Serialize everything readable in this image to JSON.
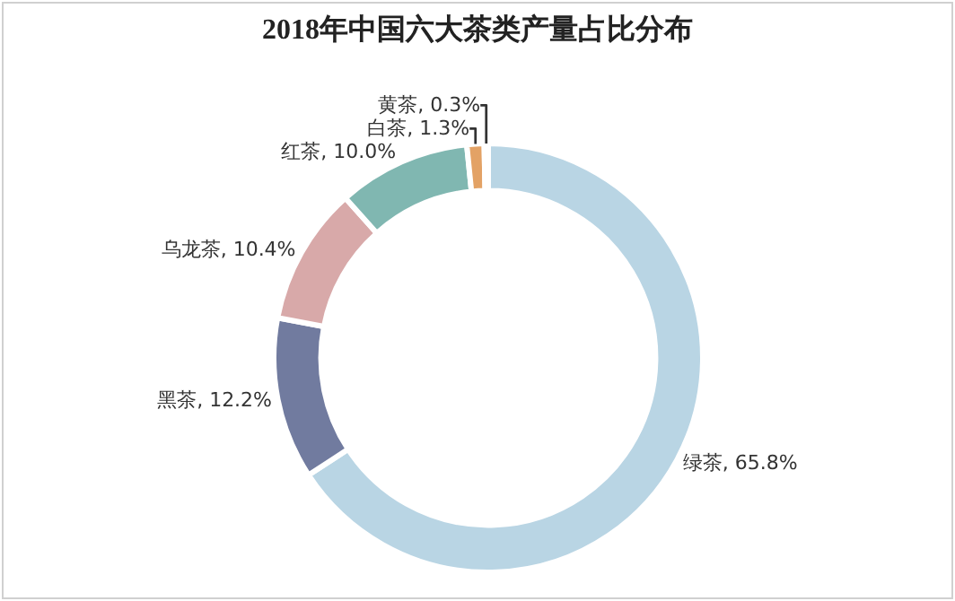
{
  "chart_data": {
    "type": "donut",
    "title": "2018年中国六大茶类产量占比分布",
    "categories": [
      "绿茶",
      "黑茶",
      "乌龙茶",
      "红茶",
      "白茶",
      "黄茶"
    ],
    "values": [
      65.8,
      12.2,
      10.4,
      10.0,
      1.3,
      0.3
    ],
    "colors": [
      "#b9d5e4",
      "#717b9f",
      "#d8a9a9",
      "#80b7b1",
      "#e3a265",
      "#c9c9c9"
    ],
    "value_labels": [
      "65.8%",
      "12.2%",
      "10.4%",
      "10.0%",
      "1.3%",
      "0.3%"
    ],
    "legend": false
  }
}
